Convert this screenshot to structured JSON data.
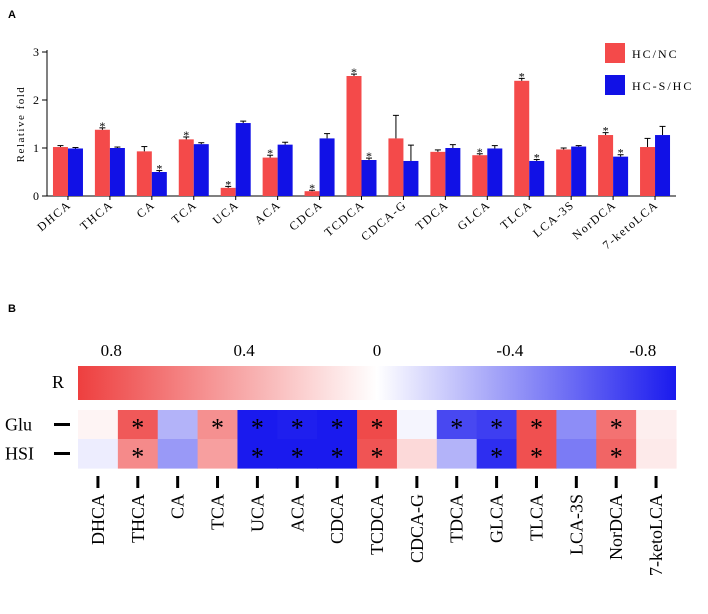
{
  "colors": {
    "series_red": "#f44a4a",
    "series_blue": "#1111e6",
    "axis": "#000000",
    "cmap_pos": "#ee3f3f",
    "cmap_neg": "#1a1aee",
    "cmap_mid": "#ffffff"
  },
  "chart_data": [
    {
      "panel": "A",
      "type": "bar",
      "ylabel": "Relative fold",
      "ylim": [
        0,
        3
      ],
      "yticks": [
        "0",
        "1",
        "2",
        "3"
      ],
      "categories": [
        "DHCA",
        "THCA",
        "CA",
        "TCA",
        "UCA",
        "ACA",
        "CDCA",
        "TCDCA",
        "CDCA-G",
        "TDCA",
        "GLCA",
        "TLCA",
        "LCA-3S",
        "NorDCA",
        "7-ketoLCA"
      ],
      "legend_position": "top-right",
      "significance_mark": "*",
      "series": [
        {
          "name": "HC/NC",
          "values": [
            1.02,
            1.38,
            0.93,
            1.18,
            0.17,
            0.8,
            0.1,
            2.5,
            1.2,
            0.92,
            0.85,
            2.4,
            0.97,
            1.27,
            1.02
          ],
          "errors": [
            0.03,
            0.04,
            0.1,
            0.05,
            0.03,
            0.05,
            0.02,
            0.04,
            0.48,
            0.04,
            0.03,
            0.05,
            0.03,
            0.05,
            0.18
          ],
          "significant": [
            false,
            true,
            false,
            true,
            true,
            true,
            true,
            true,
            false,
            false,
            true,
            true,
            false,
            true,
            false
          ]
        },
        {
          "name": "HC-S/HC",
          "values": [
            0.99,
            1.0,
            0.5,
            1.08,
            1.52,
            1.07,
            1.2,
            0.75,
            0.73,
            1.0,
            0.99,
            0.73,
            1.03,
            0.82,
            1.27
          ],
          "errors": [
            0.02,
            0.02,
            0.03,
            0.03,
            0.04,
            0.05,
            0.1,
            0.04,
            0.33,
            0.07,
            0.06,
            0.03,
            0.02,
            0.04,
            0.18
          ],
          "significant": [
            false,
            false,
            true,
            false,
            false,
            false,
            false,
            true,
            false,
            false,
            false,
            true,
            false,
            true,
            false
          ]
        }
      ]
    },
    {
      "panel": "B",
      "type": "heatmap",
      "colorbar_label": "R",
      "colorbar_range": [
        0.9,
        -0.9
      ],
      "colorbar_ticks": [
        {
          "value": 0.8,
          "label": "0.8"
        },
        {
          "value": 0.4,
          "label": "0.4"
        },
        {
          "value": 0,
          "label": "0"
        },
        {
          "value": -0.4,
          "label": "-0.4"
        },
        {
          "value": -0.8,
          "label": "-0.8"
        }
      ],
      "rows": [
        "Glu",
        "HSI"
      ],
      "columns": [
        "DHCA",
        "THCA",
        "CA",
        "TCA",
        "UCA",
        "ACA",
        "CDCA",
        "TCDCA",
        "CDCA-G",
        "TDCA",
        "GLCA",
        "TLCA",
        "LCA-3S",
        "NorDCA",
        "7-ketoLCA"
      ],
      "significance_mark": "*",
      "values": [
        [
          0.05,
          0.78,
          -0.3,
          0.52,
          -0.92,
          -0.88,
          -0.92,
          0.85,
          -0.04,
          -0.72,
          -0.76,
          0.82,
          -0.45,
          0.66,
          0.08
        ],
        [
          -0.07,
          0.55,
          -0.4,
          0.45,
          -0.95,
          -0.95,
          -0.93,
          0.8,
          0.18,
          -0.3,
          -0.82,
          0.82,
          -0.52,
          0.72,
          0.1
        ]
      ],
      "significant": [
        [
          false,
          true,
          false,
          true,
          true,
          true,
          true,
          true,
          false,
          true,
          true,
          true,
          false,
          true,
          false
        ],
        [
          false,
          true,
          false,
          false,
          true,
          true,
          true,
          true,
          false,
          false,
          true,
          true,
          false,
          true,
          false
        ]
      ]
    }
  ]
}
